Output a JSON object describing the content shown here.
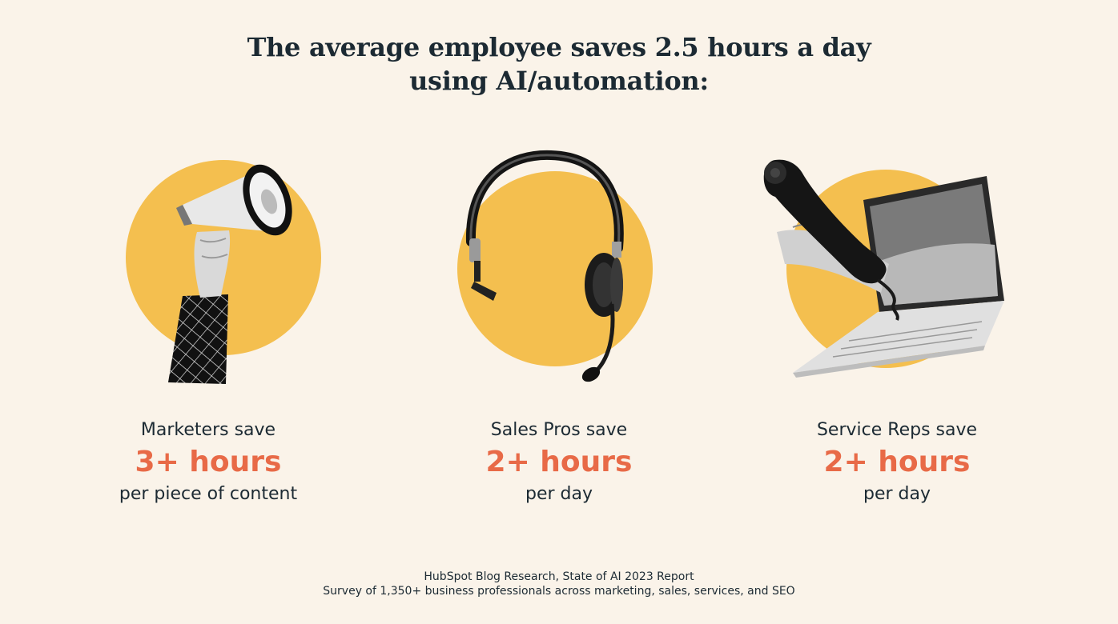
{
  "title": {
    "line1": "The average employee saves 2.5 hours a day",
    "line2": "using AI/automation:"
  },
  "stats": [
    {
      "lead": "Marketers save",
      "value": "3+ hours",
      "detail": "per piece of content",
      "illustration": "megaphone-icon"
    },
    {
      "lead": "Sales Pros save",
      "value": "2+ hours",
      "detail": "per day",
      "illustration": "headset-icon"
    },
    {
      "lead": "Service Reps save",
      "value": "2+ hours",
      "detail": "per day",
      "illustration": "phone-laptop-icon"
    }
  ],
  "source": {
    "line1": "HubSpot Blog Research, State of AI 2023 Report",
    "line2": "Survey of 1,350+ business professionals across marketing, sales, services, and SEO"
  },
  "colors": {
    "background": "#faf3e9",
    "circle": "#f4bf4f",
    "accent": "#e86a47",
    "text": "#1c2a33"
  }
}
